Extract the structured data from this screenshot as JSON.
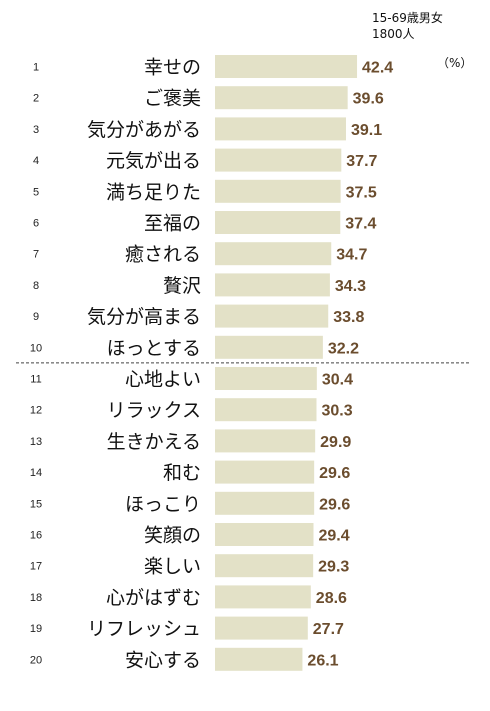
{
  "header": {
    "sample_line1": "15-69歳男女",
    "sample_line2": "1800人",
    "unit": "（%）"
  },
  "colors": {
    "bar": "#e3e1c7",
    "value_text": "#6b4d2e",
    "divider": "#444444"
  },
  "chart_data": {
    "type": "bar",
    "orientation": "horizontal",
    "ranks": [
      "1",
      "2",
      "3",
      "4",
      "5",
      "6",
      "7",
      "8",
      "9",
      "10",
      "11",
      "12",
      "13",
      "14",
      "15",
      "16",
      "17",
      "18",
      "19",
      "20"
    ],
    "categories": [
      "幸せの",
      "ご褒美",
      "気分があがる",
      "元気が出る",
      "満ち足りた",
      "至福の",
      "癒される",
      "贅沢",
      "気分が高まる",
      "ほっとする",
      "心地よい",
      "リラックス",
      "生きかえる",
      "和む",
      "ほっこり",
      "笑顔の",
      "楽しい",
      "心がはずむ",
      "リフレッシュ",
      "安心する"
    ],
    "values": [
      42.4,
      39.6,
      39.1,
      37.7,
      37.5,
      37.4,
      34.7,
      34.3,
      33.8,
      32.2,
      30.4,
      30.3,
      29.9,
      29.6,
      29.6,
      29.4,
      29.3,
      28.6,
      27.7,
      26.1
    ],
    "value_labels": [
      "42.4",
      "39.6",
      "39.1",
      "37.7",
      "37.5",
      "37.4",
      "34.7",
      "34.3",
      "33.8",
      "32.2",
      "30.4",
      "30.3",
      "29.9",
      "29.6",
      "29.6",
      "29.4",
      "29.3",
      "28.6",
      "27.7",
      "26.1"
    ],
    "xlim": [
      0,
      50
    ],
    "divider_after_rank": 10,
    "grid": false,
    "title": "",
    "xlabel": "",
    "ylabel": ""
  }
}
